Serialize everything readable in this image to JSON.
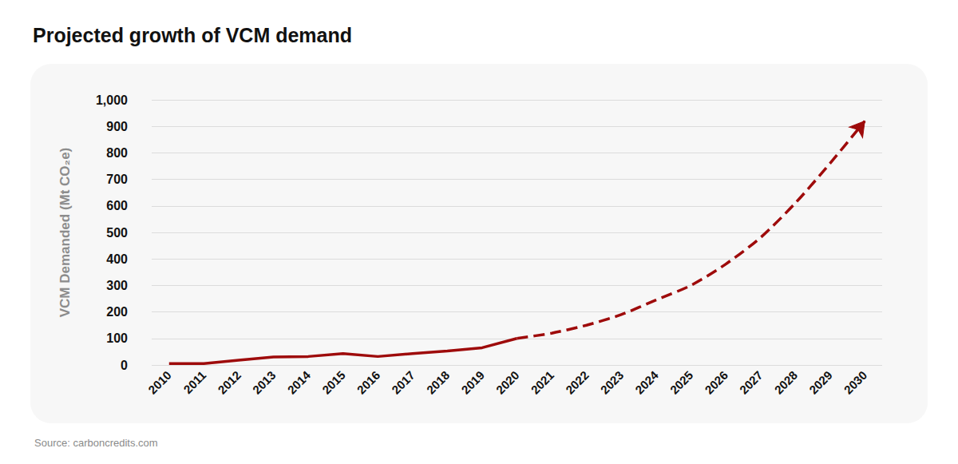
{
  "chart_data": {
    "type": "line",
    "title": "Projected growth of VCM demand",
    "source": "Source: carboncredits.com",
    "y_label": "VCM Demanded (Mt CO₂e)",
    "categories": [
      "2010",
      "2011",
      "2012",
      "2013",
      "2014",
      "2015",
      "2016",
      "2017",
      "2018",
      "2019",
      "2020",
      "2021",
      "2022",
      "2023",
      "2024",
      "2025",
      "2026",
      "2027",
      "2028",
      "2029",
      "2030"
    ],
    "series": [
      {
        "color": "#9e0b0b",
        "line_style": "solid",
        "marker": "none",
        "values": [
          5,
          5,
          18,
          30,
          32,
          43,
          32,
          43,
          53,
          65,
          100,
          null,
          null,
          null,
          null,
          null,
          null,
          null,
          null,
          null,
          null
        ]
      },
      {
        "color": "#9e0b0b",
        "line_style": "dashed",
        "marker": "arrow",
        "values": [
          null,
          null,
          null,
          null,
          null,
          null,
          null,
          null,
          null,
          null,
          100,
          120,
          150,
          190,
          245,
          300,
          380,
          480,
          610,
          760,
          920
        ]
      }
    ],
    "ylim": [
      0,
      1000
    ],
    "yticks": [
      0,
      100,
      200,
      300,
      400,
      500,
      600,
      700,
      800,
      900,
      {
        "value": 1000,
        "label": "1,000"
      }
    ],
    "grid": true
  }
}
